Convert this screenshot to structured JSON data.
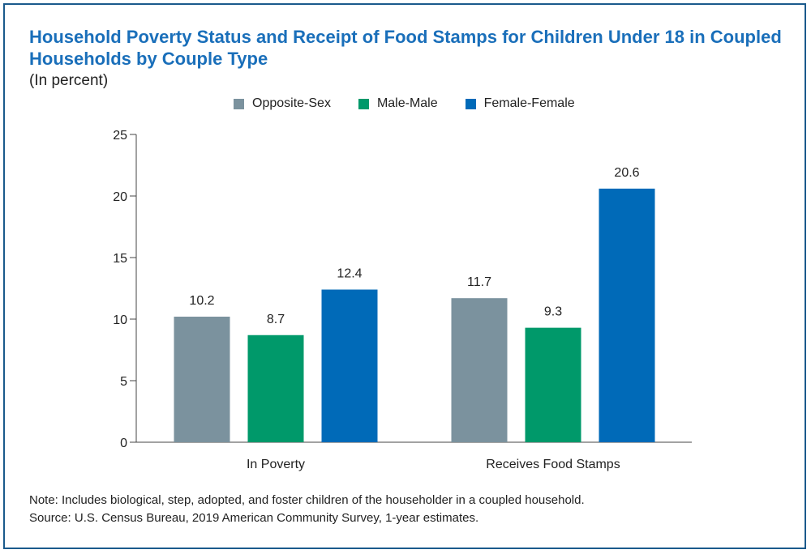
{
  "title": "Household Poverty Status and Receipt of Food Stamps for Children Under 18 in Coupled Households by Couple Type",
  "subtitle": "(In percent)",
  "note": "Note: Includes biological, step, adopted, and foster children of the householder in a coupled household.",
  "source": "Source: U.S. Census Bureau, 2019 American Community Survey, 1-year estimates.",
  "chart_data": {
    "type": "bar",
    "categories": [
      "In Poverty",
      "Receives Food Stamps"
    ],
    "series": [
      {
        "name": "Opposite-Sex",
        "color": "#7b929e",
        "values": [
          10.2,
          11.7
        ]
      },
      {
        "name": "Male-Male",
        "color": "#00996a",
        "values": [
          8.7,
          9.3
        ]
      },
      {
        "name": "Female-Female",
        "color": "#006ab8",
        "values": [
          12.4,
          20.6
        ]
      }
    ],
    "ylim": [
      0,
      25
    ],
    "yticks": [
      0,
      5,
      10,
      15,
      20,
      25
    ],
    "legend_position": "top",
    "grid": false
  }
}
